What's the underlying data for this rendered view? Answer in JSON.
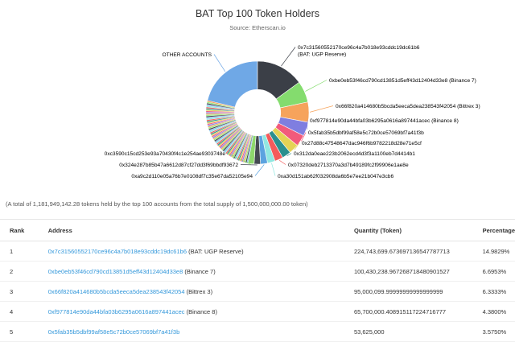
{
  "chart_data": {
    "type": "pie",
    "title": "BAT Top 100 Token Holders",
    "subtitle": "Source: Etherscan.io",
    "slices": [
      {
        "label": "OTHER ACCOUNTS",
        "percent": 21.2,
        "color": "#6fa8e6"
      },
      {
        "label": "0x7c31560552170ce96c4a7b018e93cddc19dc61b6 (BAT: UGP Reserve)",
        "percent": 14.98,
        "color": "#3b3f47"
      },
      {
        "label": "0xbe0eb53f46cd790cd13851d5eff43d12404d33e8 (Binance 7)",
        "percent": 6.7,
        "color": "#84dc6e"
      },
      {
        "label": "0x66f820a414680b5bcda5eeca5dea238543f42054 (Bittrex 3)",
        "percent": 6.33,
        "color": "#f6a35c"
      },
      {
        "label": "0xf977814e90da44bfa03b6295a0616a897441acec (Binance 8)",
        "percent": 4.38,
        "color": "#7f7ee0"
      },
      {
        "label": "0x5fab35b5dbf99af58e5c72b0ce57069bf7a41f3b",
        "percent": 3.58,
        "color": "#f25a7b"
      },
      {
        "label": "0x27d88c47548647dac946f6b9782218d28e71e5cf",
        "percent": 3.1,
        "color": "#e4d354"
      },
      {
        "label": "0x312da0eae223b2062ecd4d3f3a1100eb7d4414b1",
        "percent": 2.8,
        "color": "#2b908f"
      },
      {
        "label": "0x07320deb2713370a3d7b49189fc2f99906e1ae8e",
        "percent": 2.6,
        "color": "#f45b5b"
      },
      {
        "label": "0xa30d151ab62f032908da6b5e7ee21b047e3cb6",
        "percent": 2.4,
        "color": "#91e8e1"
      },
      {
        "label": "0xa9c2d110e05a76b7e0108df7c35e67da52105e94",
        "percent": 2.2,
        "color": "#5ba3e0"
      },
      {
        "label": "0x324e287b85b47a6612d87cf27dd3f69bbdf93672",
        "percent": 2.0,
        "color": "#454a52"
      },
      {
        "label": "0xc3590c15cd253e93a70430f4c1e254ae9303748e",
        "percent": 1.9,
        "color": "#8ed86c"
      }
    ],
    "small_slices_percent": 25.83,
    "small_slice_colors": [
      "#7cb5ec",
      "#434348",
      "#90ed7d",
      "#f7a35c",
      "#8085e9",
      "#f15c80",
      "#e4d354",
      "#2b908f",
      "#f45b5b",
      "#91e8e1"
    ],
    "inner_radius_fraction": 0.45,
    "legend": "none"
  },
  "note": "(A total of 1,181,949,142.28 tokens held by the top 100 accounts from the total supply of 1,500,000,000.00 token)",
  "table": {
    "headers": {
      "rank": "Rank",
      "address": "Address",
      "quantity": "Quantity (Token)",
      "percentage": "Percentage"
    },
    "rows": [
      {
        "rank": "1",
        "address": "0x7c31560552170ce96c4a7b018e93cddc19dc61b6",
        "tag": "(BAT: UGP Reserve)",
        "quantity": "224,743,699.673697136547787713",
        "percentage": "14.9829%"
      },
      {
        "rank": "2",
        "address": "0xbe0eb53f46cd790cd13851d5eff43d12404d33e8",
        "tag": "(Binance 7)",
        "quantity": "100,430,238.967268718480901527",
        "percentage": "6.6953%"
      },
      {
        "rank": "3",
        "address": "0x66f820a414680b5bcda5eeca5dea238543f42054",
        "tag": "(Bittrex 3)",
        "quantity": "95,000,099.99999999999999999",
        "percentage": "6.3333%"
      },
      {
        "rank": "4",
        "address": "0xf977814e90da44bfa03b6295a0616a897441acec",
        "tag": "(Binance 8)",
        "quantity": "65,700,000.408915117224716777",
        "percentage": "4.3800%"
      },
      {
        "rank": "5",
        "address": "0x5fab35b5dbf99af58e5c72b0ce57069bf7a41f3b",
        "tag": "",
        "quantity": "53,625,000",
        "percentage": "3.5750%"
      }
    ]
  }
}
